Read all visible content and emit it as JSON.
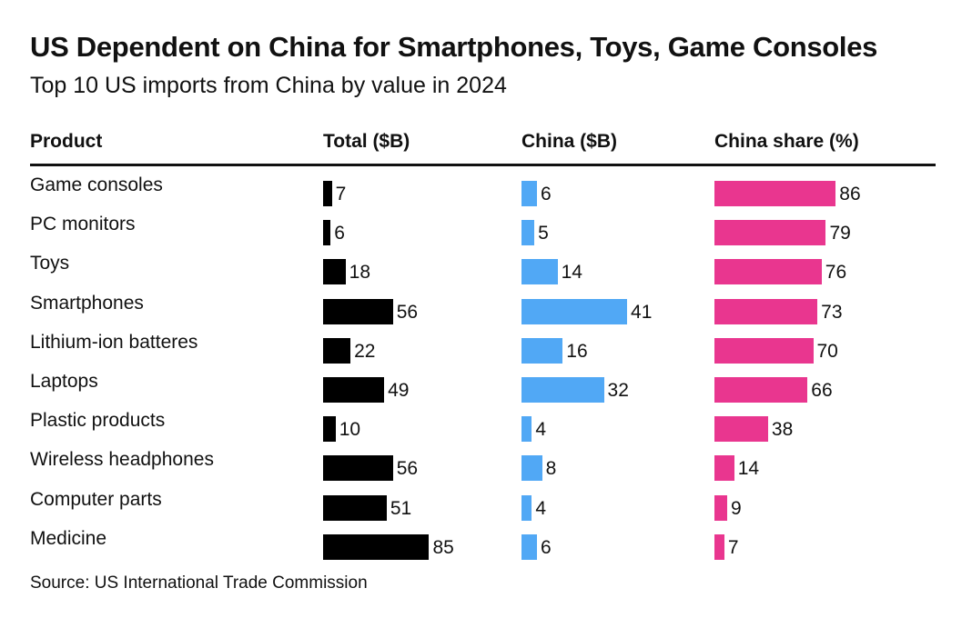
{
  "chart_data": {
    "type": "table",
    "title": "US Dependent on China for Smartphones, Toys, Game Consoles",
    "subtitle": "Top 10 US imports from China by value in 2024",
    "columns": [
      "Product",
      "Total ($B)",
      "China ($B)",
      "China share (%)"
    ],
    "categories": [
      "Game consoles",
      "PC monitors",
      "Toys",
      "Smartphones",
      "Lithium-ion batteres",
      "Laptops",
      "Plastic products",
      "Wireless headphones",
      "Computer parts",
      "Medicine"
    ],
    "series": [
      {
        "name": "Total ($B)",
        "color": "#000000",
        "values": [
          7,
          6,
          18,
          56,
          22,
          49,
          10,
          56,
          51,
          85
        ]
      },
      {
        "name": "China ($B)",
        "color": "#51a8f5",
        "values": [
          6,
          5,
          14,
          41,
          16,
          32,
          4,
          8,
          4,
          6
        ]
      },
      {
        "name": "China share (%)",
        "color": "#e9368f",
        "values": [
          86,
          79,
          76,
          73,
          70,
          66,
          38,
          14,
          9,
          7
        ]
      }
    ],
    "source": "Source: US International Trade Commission"
  }
}
